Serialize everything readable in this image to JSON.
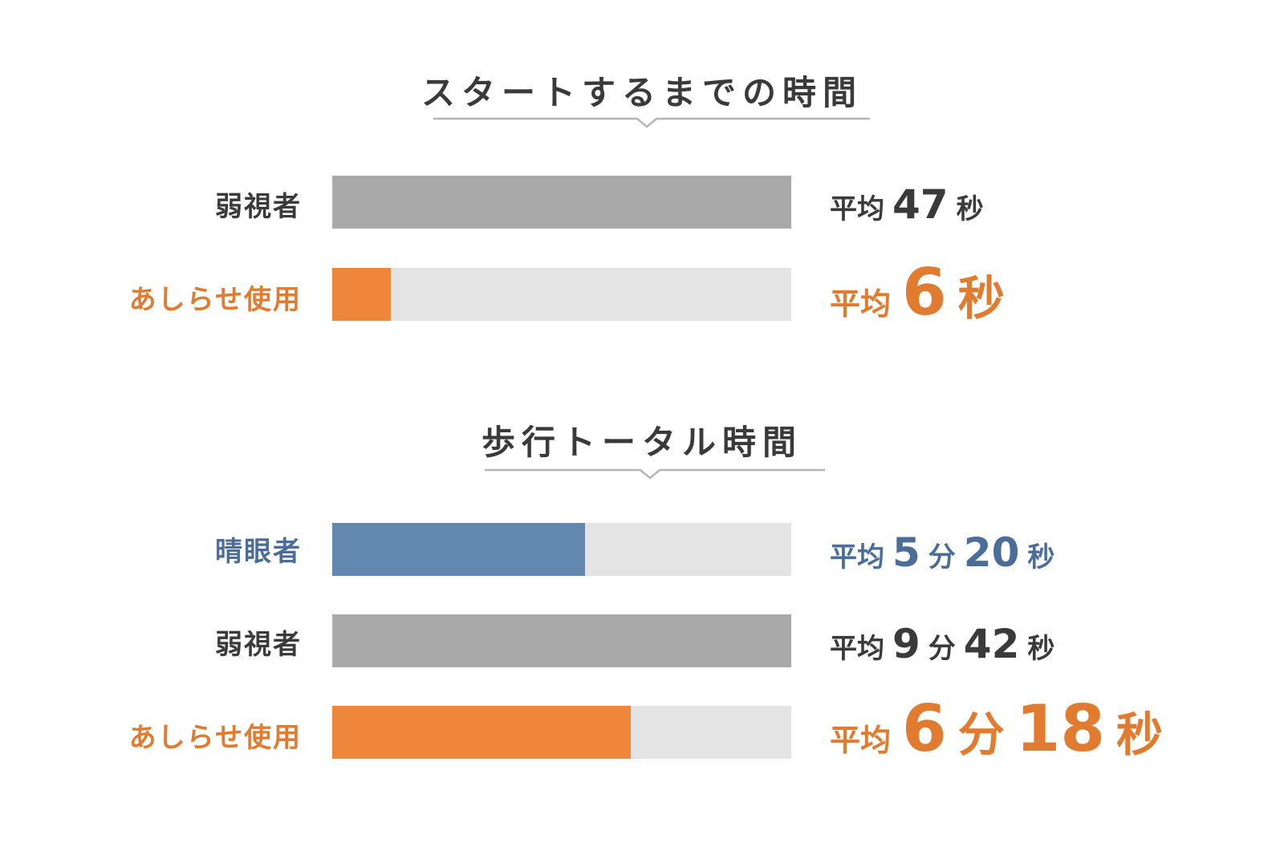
{
  "chart_data": [
    {
      "type": "bar",
      "orientation": "horizontal",
      "title": "スタートするまでの時間",
      "categories": [
        "弱視者",
        "あしらせ使用"
      ],
      "values_seconds": [
        47,
        6
      ],
      "value_labels": [
        {
          "prefix": "平均",
          "parts": [
            {
              "num": "47",
              "unit": "秒"
            }
          ]
        },
        {
          "prefix": "平均",
          "parts": [
            {
              "num": "6",
              "unit": "秒"
            }
          ]
        }
      ],
      "colors": [
        "#a9a9a9",
        "#ee873a"
      ],
      "label_colors": [
        "#3a3a3a",
        "#e07b30"
      ],
      "xlim": [
        0,
        47
      ],
      "track_color": "#e4e4e4"
    },
    {
      "type": "bar",
      "orientation": "horizontal",
      "title": "歩行トータル時間",
      "categories": [
        "晴眼者",
        "弱視者",
        "あしらせ使用"
      ],
      "values_seconds": [
        320,
        582,
        378
      ],
      "value_labels": [
        {
          "prefix": "平均",
          "parts": [
            {
              "num": "5",
              "unit": "分"
            },
            {
              "num": "20",
              "unit": "秒"
            }
          ]
        },
        {
          "prefix": "平均",
          "parts": [
            {
              "num": "9",
              "unit": "分"
            },
            {
              "num": "42",
              "unit": "秒"
            }
          ]
        },
        {
          "prefix": "平均",
          "parts": [
            {
              "num": "6",
              "unit": "分"
            },
            {
              "num": "18",
              "unit": "秒"
            }
          ]
        }
      ],
      "colors": [
        "#6388b0",
        "#a9a9a9",
        "#ee873a"
      ],
      "label_colors": [
        "#4a6d9a",
        "#3a3a3a",
        "#e07b30"
      ],
      "xlim": [
        0,
        582
      ],
      "track_color": "#e4e4e4"
    }
  ]
}
